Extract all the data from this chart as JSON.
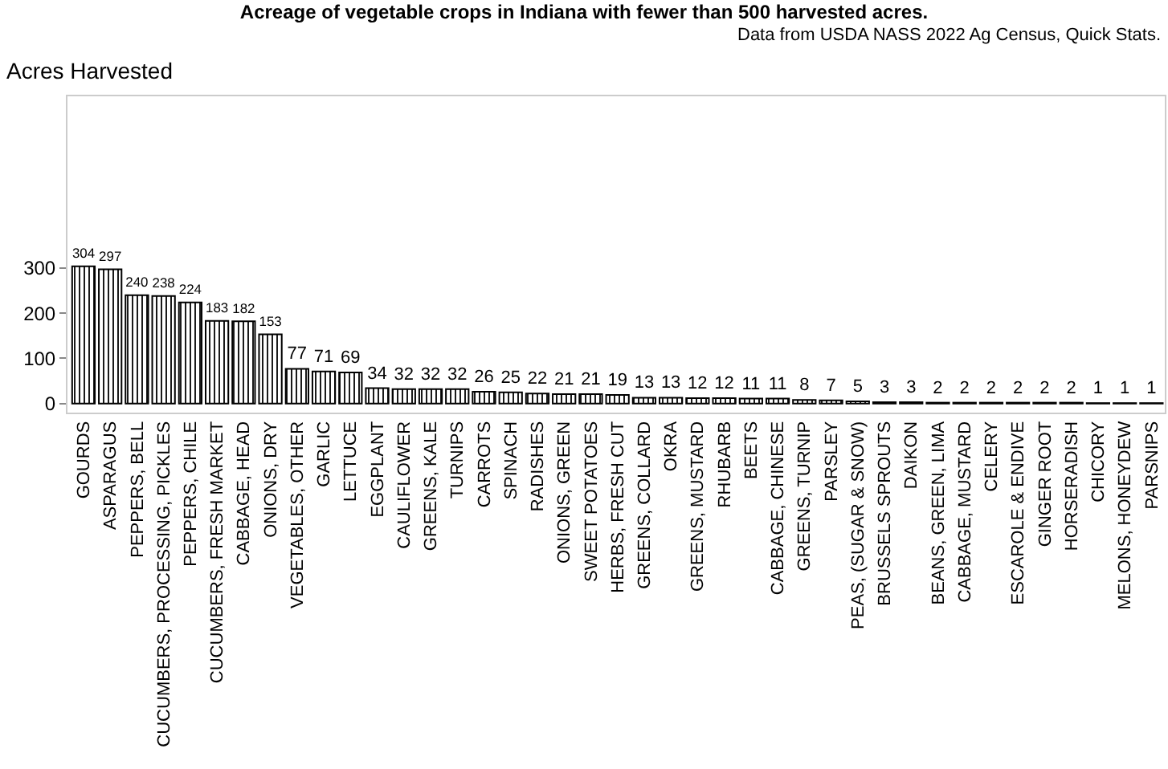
{
  "chart_data": {
    "type": "bar",
    "title": "Acreage of vegetable crops in Indiana with fewer than 500 harvested acres.",
    "subtitle": "Data from USDA NASS 2022 Ag Census, Quick Stats.",
    "ylabel": "Acres Harvested",
    "categories": [
      "GOURDS",
      "ASPARAGUS",
      "PEPPERS, BELL",
      "CUCUMBERS, PROCESSING, PICKLES",
      "PEPPERS, CHILE",
      "CUCUMBERS, FRESH MARKET",
      "CABBAGE, HEAD",
      "ONIONS, DRY",
      "VEGETABLES, OTHER",
      "GARLIC",
      "LETTUCE",
      "EGGPLANT",
      "CAULIFLOWER",
      "GREENS, KALE",
      "TURNIPS",
      "CARROTS",
      "SPINACH",
      "RADISHES",
      "ONIONS, GREEN",
      "SWEET POTATOES",
      "HERBS, FRESH CUT",
      "GREENS, COLLARD",
      "OKRA",
      "GREENS, MUSTARD",
      "RHUBARB",
      "BEETS",
      "CABBAGE, CHINESE",
      "GREENS, TURNIP",
      "PARSLEY",
      "PEAS, (SUGAR & SNOW)",
      "BRUSSELS SPROUTS",
      "DAIKON",
      "BEANS, GREEN, LIMA",
      "CABBAGE, MUSTARD",
      "CELERY",
      "ESCAROLE & ENDIVE",
      "GINGER ROOT",
      "HORSERADISH",
      "CHICORY",
      "MELONS, HONEYDEW",
      "PARSNIPS"
    ],
    "values": [
      304,
      297,
      240,
      238,
      224,
      183,
      182,
      153,
      77,
      71,
      69,
      34,
      32,
      32,
      32,
      26,
      25,
      22,
      21,
      21,
      19,
      13,
      13,
      12,
      12,
      11,
      11,
      8,
      7,
      5,
      3,
      3,
      2,
      2,
      2,
      2,
      2,
      2,
      1,
      1,
      1
    ],
    "color": "#000000",
    "ylim": [
      -20,
      680
    ],
    "yticks": [
      0,
      100,
      200,
      300
    ],
    "legend": false,
    "data_labels": true
  }
}
